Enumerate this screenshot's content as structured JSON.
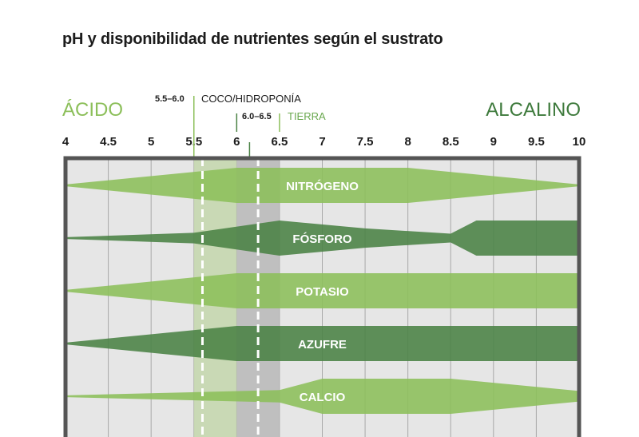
{
  "title": "pH y disponibilidad de nutrientes según el sustrato",
  "acid_label": "ÁCIDO",
  "alkaline_label": "ALCALINO",
  "coco": {
    "range_text": "5.5–6.0",
    "label": "COCO/HIDROPONÍA"
  },
  "soil": {
    "range_text": "6.0–6.5",
    "label": "TIERRA"
  },
  "colors": {
    "light_green": "#8cbf5a",
    "dark_green": "#4a8244",
    "panel": "#e6e6e6",
    "frame": "#555555"
  },
  "chart_data": {
    "type": "area",
    "title": "pH y disponibilidad de nutrientes según el sustrato",
    "x_ticks": [
      "4",
      "4.5",
      "5",
      "5.5",
      "6",
      "6.5",
      "7",
      "7.5",
      "8",
      "8.5",
      "9",
      "9.5",
      "10"
    ],
    "xlim": [
      4,
      10
    ],
    "ylabel": "",
    "xlabel": "",
    "grid": true,
    "bands": [
      {
        "low": 5.5,
        "high": 6.0,
        "label": "COCO/HIDROPONÍA"
      },
      {
        "low": 6.0,
        "high": 6.5,
        "label": "TIERRA"
      }
    ],
    "series": [
      {
        "name": "NITRÓGENO",
        "color": "#8cbf5a",
        "x": [
          4,
          6,
          7,
          8,
          10
        ],
        "width": [
          0.05,
          1.0,
          1.0,
          1.0,
          0.05
        ]
      },
      {
        "name": "FÓSFORO",
        "color": "#4a8244",
        "x": [
          4,
          5.5,
          6.5,
          7.5,
          8.5,
          8.8,
          10
        ],
        "width": [
          0.05,
          0.3,
          1.0,
          0.55,
          0.25,
          1.0,
          1.0
        ]
      },
      {
        "name": "POTASIO",
        "color": "#8cbf5a",
        "x": [
          4,
          6,
          10
        ],
        "width": [
          0.05,
          1.0,
          1.0
        ]
      },
      {
        "name": "AZUFRE",
        "color": "#4a8244",
        "x": [
          4,
          6,
          10
        ],
        "width": [
          0.05,
          1.0,
          1.0
        ]
      },
      {
        "name": "CALCIO",
        "color": "#8cbf5a",
        "x": [
          4,
          6.5,
          7,
          8.5,
          10
        ],
        "width": [
          0.05,
          0.35,
          1.0,
          1.0,
          0.3
        ]
      }
    ]
  }
}
